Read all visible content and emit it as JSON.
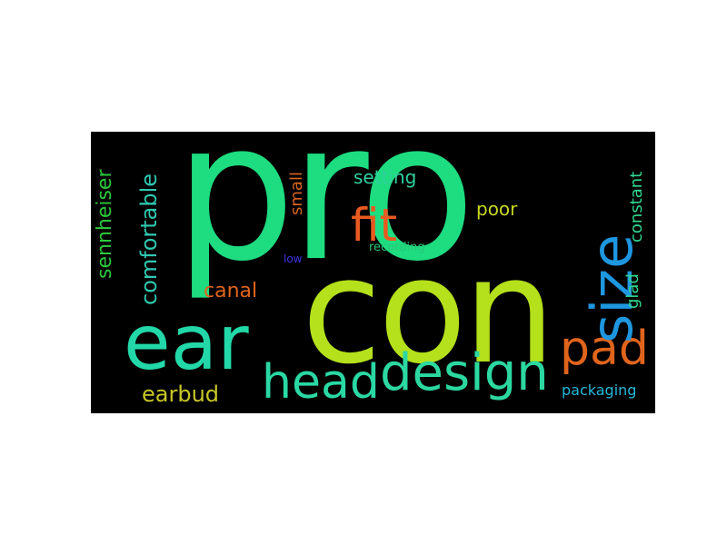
{
  "wordcloud": {
    "background": "#000000",
    "words": [
      {
        "key": "pro",
        "text": "pro",
        "color": "#1edc80"
      },
      {
        "key": "con",
        "text": "con",
        "color": "#b4e01c"
      },
      {
        "key": "ear",
        "text": "ear",
        "color": "#22d8a8"
      },
      {
        "key": "head",
        "text": "head",
        "color": "#2ad8a4"
      },
      {
        "key": "design",
        "text": "design",
        "color": "#2cd8a0"
      },
      {
        "key": "pad",
        "text": "pad",
        "color": "#e0641c"
      },
      {
        "key": "fit",
        "text": "fit",
        "color": "#e85a20"
      },
      {
        "key": "size",
        "text": "size",
        "color": "#1e96e0"
      },
      {
        "key": "comfortable",
        "text": "comfortable",
        "color": "#30c8b0"
      },
      {
        "key": "sennheiser",
        "text": "sennheiser",
        "color": "#2cc83c"
      },
      {
        "key": "small",
        "text": "small",
        "color": "#d86420"
      },
      {
        "key": "setting",
        "text": "setting",
        "color": "#30d0a0"
      },
      {
        "key": "poor",
        "text": "poor",
        "color": "#c8d820"
      },
      {
        "key": "canal",
        "text": "canal",
        "color": "#e06420"
      },
      {
        "key": "earbud",
        "text": "earbud",
        "color": "#c8c828"
      },
      {
        "key": "recording",
        "text": "recording",
        "color": "#28c878"
      },
      {
        "key": "low",
        "text": "low",
        "color": "#3c34e0"
      },
      {
        "key": "constant",
        "text": "constant",
        "color": "#30d890"
      },
      {
        "key": "glad",
        "text": "glad",
        "color": "#30d890"
      },
      {
        "key": "packaging",
        "text": "packaging",
        "color": "#24b8d8"
      }
    ]
  }
}
